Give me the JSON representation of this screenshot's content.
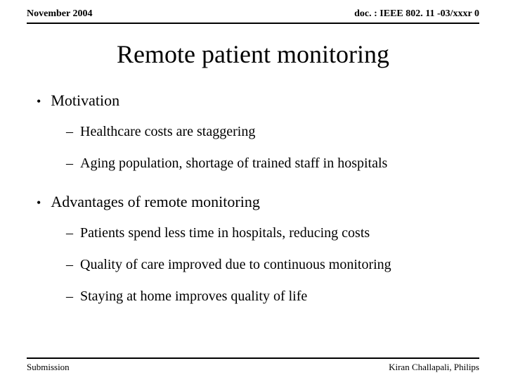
{
  "header": {
    "date": "November 2004",
    "doc_ref": "doc. : IEEE 802. 11 -03/xxxr 0"
  },
  "title": "Remote patient monitoring",
  "sections": [
    {
      "heading": "Motivation",
      "items": [
        "Healthcare costs are staggering",
        "Aging population, shortage of trained staff in hospitals"
      ]
    },
    {
      "heading": "Advantages of remote monitoring",
      "items": [
        "Patients spend less time in hospitals, reducing costs",
        "Quality of care improved due to continuous monitoring",
        "Staying at home improves quality of life"
      ]
    }
  ],
  "footer": {
    "left": "Submission",
    "right": "Kiran Challapali, Philips"
  },
  "style": {
    "background_color": "#ffffff",
    "text_color": "#000000",
    "rule_color": "#000000",
    "title_fontsize": 36,
    "l1_fontsize": 22,
    "l2_fontsize": 20,
    "header_fontsize": 14,
    "footer_fontsize": 13,
    "font_family": "Times New Roman"
  }
}
